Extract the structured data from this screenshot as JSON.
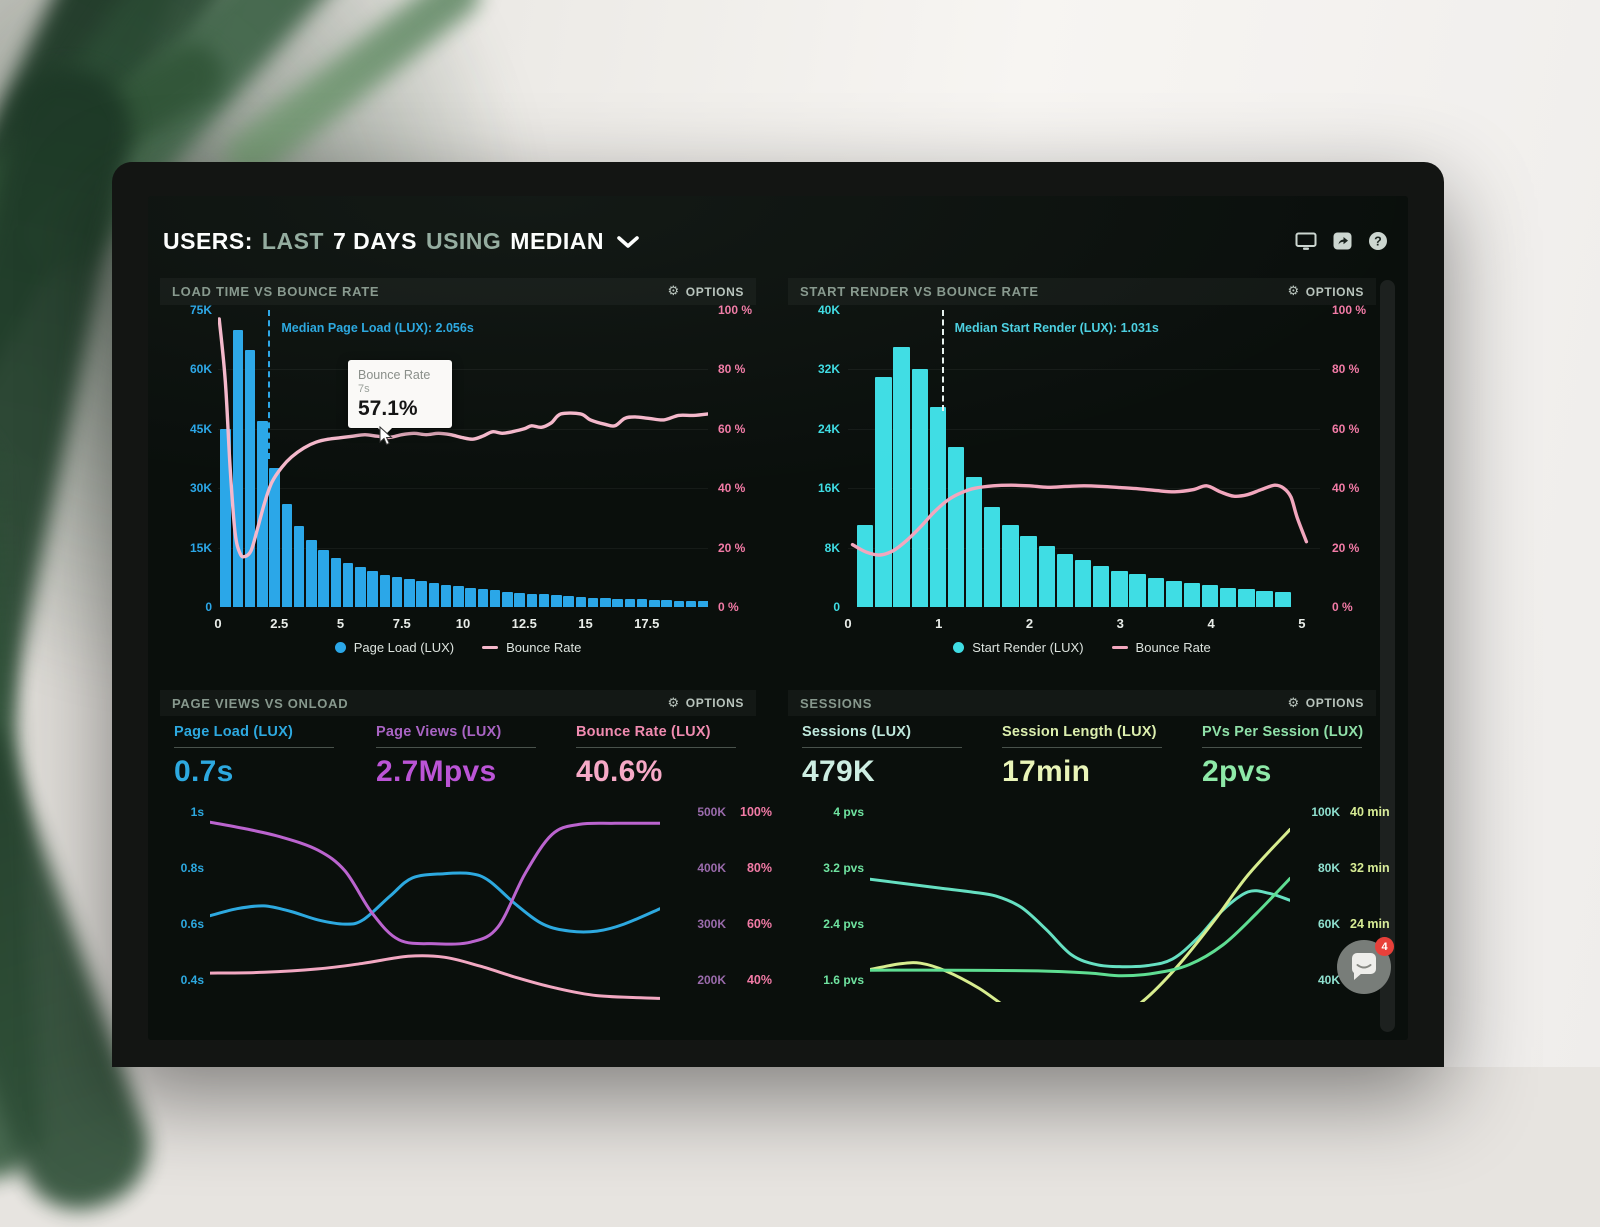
{
  "header": {
    "title_segments": [
      {
        "text": "USERS:"
      },
      {
        "text": "LAST"
      },
      {
        "text": "7 DAYS"
      },
      {
        "text": "USING"
      },
      {
        "text": "MEDIAN"
      }
    ],
    "icons": [
      "display-icon",
      "share-icon",
      "help-icon"
    ]
  },
  "panels": {
    "load_time": {
      "title": "LOAD TIME VS BOUNCE RATE",
      "options_label": "OPTIONS",
      "tooltip": {
        "title": "Bounce Rate",
        "x_label": "7s",
        "value": "57.1%"
      }
    },
    "start_render": {
      "title": "START RENDER VS BOUNCE RATE",
      "options_label": "OPTIONS"
    },
    "page_views": {
      "title": "PAGE VIEWS VS ONLOAD",
      "options_label": "OPTIONS"
    },
    "sessions": {
      "title": "SESSIONS",
      "options_label": "OPTIONS"
    }
  },
  "panel3_metrics": [
    {
      "label": "Page Load (LUX)",
      "value": "0.7s",
      "color": "#2DA9E0",
      "value_color": "#2DA9E0"
    },
    {
      "label": "Page Views (LUX)",
      "value": "2.7Mpvs",
      "color": "#A964C4",
      "value_color": "#BB54D6"
    },
    {
      "label": "Bounce Rate (LUX)",
      "value": "40.6%",
      "color": "#F08BB0",
      "value_color": "#F6A9C6"
    }
  ],
  "panel4_metrics": [
    {
      "label": "Sessions (LUX)",
      "value": "479K",
      "color": "#BFE8DC",
      "value_color": "#CDEEE2"
    },
    {
      "label": "Session Length (LUX)",
      "value": "17min",
      "color": "#DCEFAE",
      "value_color": "#E9F4B8"
    },
    {
      "label": "PVs Per Session (LUX)",
      "value": "2pvs",
      "color": "#8FE0A8",
      "value_color": "#8EE9A8"
    }
  ],
  "chat_widget": {
    "badge": "4"
  },
  "chart_data": [
    {
      "type": "bar",
      "title": "LOAD TIME VS BOUNCE RATE",
      "x": {
        "min": 0,
        "max": 20,
        "unit": "s",
        "ticks": [
          0,
          2.5,
          5,
          7.5,
          10,
          12.5,
          15,
          17.5
        ],
        "tick_labels": [
          "0",
          "2.5",
          "5",
          "7.5",
          "10",
          "12.5",
          "15",
          "17.5"
        ]
      },
      "left_axis": {
        "labels": [
          "75K",
          "60K",
          "45K",
          "30K",
          "15K",
          "0"
        ],
        "max": 75,
        "color": "#2BA7E8"
      },
      "right_axis": {
        "labels": [
          "100 %",
          "80 %",
          "60 %",
          "40 %",
          "20 %",
          "0 %"
        ],
        "max": 100,
        "color": "#F27BA6"
      },
      "bars": {
        "name": "Page Load (LUX)",
        "color": "#2BA7E8",
        "bin_start": 0.1,
        "bin_width": 0.5,
        "unit": "K sessions",
        "values": [
          45,
          70,
          65,
          47,
          35,
          26,
          20.5,
          17,
          14.5,
          12.5,
          11,
          10,
          9,
          8.2,
          7.6,
          7,
          6.5,
          6,
          5.6,
          5.2,
          4.8,
          4.5,
          4.2,
          3.9,
          3.6,
          3.4,
          3.2,
          3,
          2.8,
          2.6,
          2.4,
          2.2,
          2.1,
          2,
          1.9,
          1.8,
          1.7,
          1.6,
          1.5,
          1.4
        ]
      },
      "line": {
        "name": "Bounce Rate",
        "color": "#F5B8CB",
        "unit": "%",
        "points": [
          [
            0.05,
            97
          ],
          [
            0.3,
            76
          ],
          [
            0.5,
            46
          ],
          [
            0.7,
            25
          ],
          [
            0.9,
            18
          ],
          [
            1.1,
            17
          ],
          [
            1.35,
            19
          ],
          [
            1.6,
            26
          ],
          [
            1.9,
            35
          ],
          [
            2.2,
            42
          ],
          [
            2.6,
            47
          ],
          [
            3,
            50.5
          ],
          [
            3.5,
            53.5
          ],
          [
            4,
            55.5
          ],
          [
            4.5,
            56.5
          ],
          [
            5,
            57
          ],
          [
            5.5,
            57.5
          ],
          [
            6,
            58
          ],
          [
            6.5,
            57.5
          ],
          [
            7,
            57.1
          ],
          [
            7.5,
            58
          ],
          [
            8,
            58.5
          ],
          [
            8.5,
            58
          ],
          [
            9,
            58.5
          ],
          [
            9.5,
            58
          ],
          [
            10,
            57
          ],
          [
            10.4,
            56.5
          ],
          [
            10.8,
            57.5
          ],
          [
            11.2,
            59
          ],
          [
            11.6,
            58.5
          ],
          [
            12,
            59
          ],
          [
            12.5,
            60
          ],
          [
            12.8,
            61
          ],
          [
            13.2,
            60.5
          ],
          [
            13.6,
            62
          ],
          [
            14,
            65
          ],
          [
            14.8,
            65
          ],
          [
            15.2,
            63
          ],
          [
            15.8,
            61.5
          ],
          [
            16.2,
            61
          ],
          [
            16.6,
            63.5
          ],
          [
            17,
            64
          ],
          [
            17.6,
            63.5
          ],
          [
            18.2,
            63
          ],
          [
            18.8,
            64.5
          ],
          [
            19.4,
            64.5
          ],
          [
            20,
            65
          ]
        ]
      },
      "median": {
        "label": "Median Page Load (LUX): 2.056s",
        "x": 2.056,
        "color": "#2BA7E8",
        "label_color": "#2DA9E0",
        "height_frac": 0.5
      }
    },
    {
      "type": "bar",
      "title": "START RENDER VS BOUNCE RATE",
      "x": {
        "min": 0,
        "max": 5.2,
        "unit": "s",
        "ticks": [
          0,
          1,
          2,
          3,
          4,
          5
        ],
        "tick_labels": [
          "0",
          "1",
          "2",
          "3",
          "4",
          "5"
        ]
      },
      "left_axis": {
        "labels": [
          "40K",
          "32K",
          "24K",
          "16K",
          "8K",
          "0"
        ],
        "max": 40,
        "color": "#3FDDE4"
      },
      "right_axis": {
        "labels": [
          "100 %",
          "80 %",
          "60 %",
          "40 %",
          "20 %",
          "0 %"
        ],
        "max": 100,
        "color": "#F27BA6"
      },
      "bars": {
        "name": "Start Render (LUX)",
        "color": "#3FDDE4",
        "bin_start": 0.1,
        "bin_width": 0.2,
        "unit": "K sessions",
        "values": [
          11,
          31,
          35,
          32,
          27,
          21.5,
          17.5,
          13.5,
          11,
          9.5,
          8.2,
          7.2,
          6.3,
          5.5,
          4.9,
          4.4,
          3.9,
          3.5,
          3.2,
          2.9,
          2.6,
          2.4,
          2.2,
          2
        ]
      },
      "line": {
        "name": "Bounce Rate",
        "color": "#F2A7BE",
        "unit": "%",
        "points": [
          [
            0.05,
            21
          ],
          [
            0.2,
            18.5
          ],
          [
            0.35,
            17.5
          ],
          [
            0.5,
            19
          ],
          [
            0.65,
            22.5
          ],
          [
            0.8,
            27
          ],
          [
            0.95,
            32
          ],
          [
            1.1,
            36
          ],
          [
            1.25,
            38.5
          ],
          [
            1.4,
            40
          ],
          [
            1.6,
            40.8
          ],
          [
            1.8,
            41
          ],
          [
            2,
            40.8
          ],
          [
            2.2,
            40.3
          ],
          [
            2.4,
            40.6
          ],
          [
            2.6,
            40.8
          ],
          [
            2.8,
            40.6
          ],
          [
            3,
            40.2
          ],
          [
            3.2,
            39.8
          ],
          [
            3.4,
            39.2
          ],
          [
            3.6,
            38.8
          ],
          [
            3.8,
            39.5
          ],
          [
            3.95,
            40.8
          ],
          [
            4.1,
            38.8
          ],
          [
            4.25,
            37.3
          ],
          [
            4.4,
            37.8
          ],
          [
            4.55,
            39.5
          ],
          [
            4.7,
            41
          ],
          [
            4.8,
            40
          ],
          [
            4.88,
            37
          ],
          [
            4.95,
            30
          ],
          [
            5.05,
            22
          ]
        ]
      },
      "median": {
        "label": "Median Start Render (LUX): 1.031s",
        "x": 1.031,
        "color": "#E8F2EF",
        "label_color": "#4DD0E1",
        "height_frac": 0.34
      }
    },
    {
      "type": "line",
      "title": "PAGE VIEWS VS ONLOAD",
      "axes": {
        "left": {
          "labels": [
            "1s",
            "0.8s",
            "0.6s",
            "0.4s"
          ],
          "values": [
            1,
            0.8,
            0.6,
            0.4
          ],
          "range": [
            0.322,
            1.036
          ],
          "color": "#2DA9E0"
        },
        "right1": {
          "labels": [
            "500K",
            "400K",
            "300K",
            "200K"
          ],
          "values": [
            500,
            400,
            300,
            200
          ],
          "range": [
            161,
            518
          ],
          "color": "#9A6BAC"
        },
        "right2": {
          "labels": [
            "100%",
            "80%",
            "60%",
            "40%"
          ],
          "values": [
            100,
            80,
            60,
            40
          ],
          "range": [
            32.2,
            103.6
          ],
          "color": "#F27BA6"
        }
      },
      "series": [
        {
          "name": "Page Load (LUX)",
          "axis": "left",
          "unit": "s",
          "color": "#2DA9E0",
          "points": [
            [
              0,
              0.63
            ],
            [
              0.06,
              0.655
            ],
            [
              0.12,
              0.665
            ],
            [
              0.18,
              0.645
            ],
            [
              0.24,
              0.615
            ],
            [
              0.3,
              0.6
            ],
            [
              0.34,
              0.615
            ],
            [
              0.4,
              0.7
            ],
            [
              0.45,
              0.765
            ],
            [
              0.52,
              0.78
            ],
            [
              0.58,
              0.78
            ],
            [
              0.62,
              0.755
            ],
            [
              0.68,
              0.67
            ],
            [
              0.74,
              0.6
            ],
            [
              0.8,
              0.575
            ],
            [
              0.86,
              0.575
            ],
            [
              0.92,
              0.6
            ],
            [
              1,
              0.655
            ]
          ]
        },
        {
          "name": "Page Views (LUX)",
          "axis": "right1",
          "unit": "K pvs",
          "color": "#BB64CF",
          "points": [
            [
              0,
              482
            ],
            [
              0.08,
              470
            ],
            [
              0.16,
              455
            ],
            [
              0.24,
              432
            ],
            [
              0.3,
              395
            ],
            [
              0.36,
              320
            ],
            [
              0.42,
              272
            ],
            [
              0.5,
              265
            ],
            [
              0.58,
              268
            ],
            [
              0.64,
              295
            ],
            [
              0.7,
              390
            ],
            [
              0.76,
              460
            ],
            [
              0.82,
              478
            ],
            [
              0.9,
              480
            ],
            [
              1,
              480
            ]
          ]
        },
        {
          "name": "Bounce Rate (LUX)",
          "axis": "right2",
          "unit": "%",
          "color": "#F2A8C2",
          "points": [
            [
              0,
              42.5
            ],
            [
              0.12,
              42.8
            ],
            [
              0.24,
              44
            ],
            [
              0.34,
              46
            ],
            [
              0.44,
              48.5
            ],
            [
              0.52,
              48.2
            ],
            [
              0.6,
              45
            ],
            [
              0.68,
              41
            ],
            [
              0.76,
              37.5
            ],
            [
              0.86,
              34.5
            ],
            [
              1,
              33.5
            ]
          ]
        }
      ]
    },
    {
      "type": "line",
      "title": "SESSIONS",
      "axes": {
        "left": {
          "labels": [
            "4 pvs",
            "3.2 pvs",
            "2.4 pvs",
            "1.6 pvs"
          ],
          "values": [
            4,
            3.2,
            2.4,
            1.6
          ],
          "range": [
            1.286,
            4.143
          ],
          "color": "#6FE3A0"
        },
        "right1": {
          "labels": [
            "100K",
            "80K",
            "60K",
            "40K"
          ],
          "values": [
            100,
            80,
            60,
            40
          ],
          "range": [
            32.2,
            103.6
          ],
          "color": "#8FE0CF"
        },
        "right2": {
          "labels": [
            "40 min",
            "32 min",
            "24 min"
          ],
          "values": [
            40,
            32,
            24
          ],
          "range": [
            12.86,
            41.43
          ],
          "color": "#D6EB94"
        }
      },
      "series": [
        {
          "name": "Sessions (LUX)",
          "axis": "right1",
          "unit": "K",
          "color": "#66E0C2",
          "points": [
            [
              0,
              76
            ],
            [
              0.08,
              74.5
            ],
            [
              0.16,
              73
            ],
            [
              0.24,
              71.5
            ],
            [
              0.3,
              70
            ],
            [
              0.36,
              66
            ],
            [
              0.42,
              58
            ],
            [
              0.48,
              49
            ],
            [
              0.54,
              45.5
            ],
            [
              0.6,
              44.8
            ],
            [
              0.66,
              45.2
            ],
            [
              0.72,
              47.5
            ],
            [
              0.78,
              55
            ],
            [
              0.84,
              65
            ],
            [
              0.9,
              71.5
            ],
            [
              0.95,
              71
            ],
            [
              1,
              68.5
            ]
          ]
        },
        {
          "name": "Session Length (LUX)",
          "axis": "right2",
          "unit": "min",
          "color": "#D8ED8F",
          "points": [
            [
              0,
              17.5
            ],
            [
              0.07,
              18.3
            ],
            [
              0.12,
              18.4
            ],
            [
              0.18,
              17.3
            ],
            [
              0.26,
              14.8
            ],
            [
              0.34,
              11.5
            ],
            [
              0.42,
              9.2
            ],
            [
              0.5,
              8.6
            ],
            [
              0.58,
              10
            ],
            [
              0.66,
              13.5
            ],
            [
              0.74,
              18.5
            ],
            [
              0.82,
              24.5
            ],
            [
              0.9,
              31
            ],
            [
              1,
              37.5
            ]
          ]
        },
        {
          "name": "PVs Per Session (LUX)",
          "axis": "left",
          "unit": "pvs",
          "color": "#5FDE92",
          "points": [
            [
              0,
              1.74
            ],
            [
              0.2,
              1.74
            ],
            [
              0.4,
              1.73
            ],
            [
              0.52,
              1.7
            ],
            [
              0.6,
              1.66
            ],
            [
              0.68,
              1.7
            ],
            [
              0.76,
              1.82
            ],
            [
              0.84,
              2.1
            ],
            [
              0.92,
              2.55
            ],
            [
              1,
              3.05
            ]
          ]
        }
      ]
    }
  ]
}
